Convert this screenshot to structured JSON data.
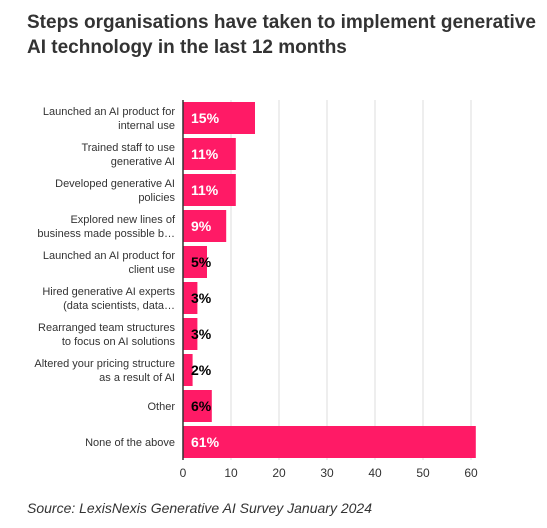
{
  "chart_data": {
    "type": "bar",
    "orientation": "horizontal",
    "title": "Steps organisations have taken to implement generative AI technology in the last 12 months",
    "source": "Source: LexisNexis Generative AI Survey January 2024",
    "categories": [
      [
        "Launched an AI product for",
        "internal use"
      ],
      [
        "Trained staff to use",
        "generative AI"
      ],
      [
        "Developed generative AI",
        "policies"
      ],
      [
        "Explored new lines of",
        "business made possible b…"
      ],
      [
        "Launched an AI product for",
        "client use"
      ],
      [
        "Hired generative AI experts",
        "(data scientists, data…"
      ],
      [
        "Rearranged team structures",
        "to focus on AI solutions"
      ],
      [
        "Altered your pricing structure",
        "as a result of AI"
      ],
      [
        "Other"
      ],
      [
        "None of the above"
      ]
    ],
    "values": [
      15,
      11,
      11,
      9,
      5,
      3,
      3,
      2,
      6,
      61
    ],
    "data_labels": [
      "15%",
      "11%",
      "11%",
      "9%",
      "5%",
      "3%",
      "3%",
      "2%",
      "6%",
      "61%"
    ],
    "xlim": [
      0,
      65
    ],
    "xticks": [
      0,
      10,
      20,
      30,
      40,
      50,
      60
    ],
    "grid": true,
    "bar_color": "#ff1a66"
  }
}
